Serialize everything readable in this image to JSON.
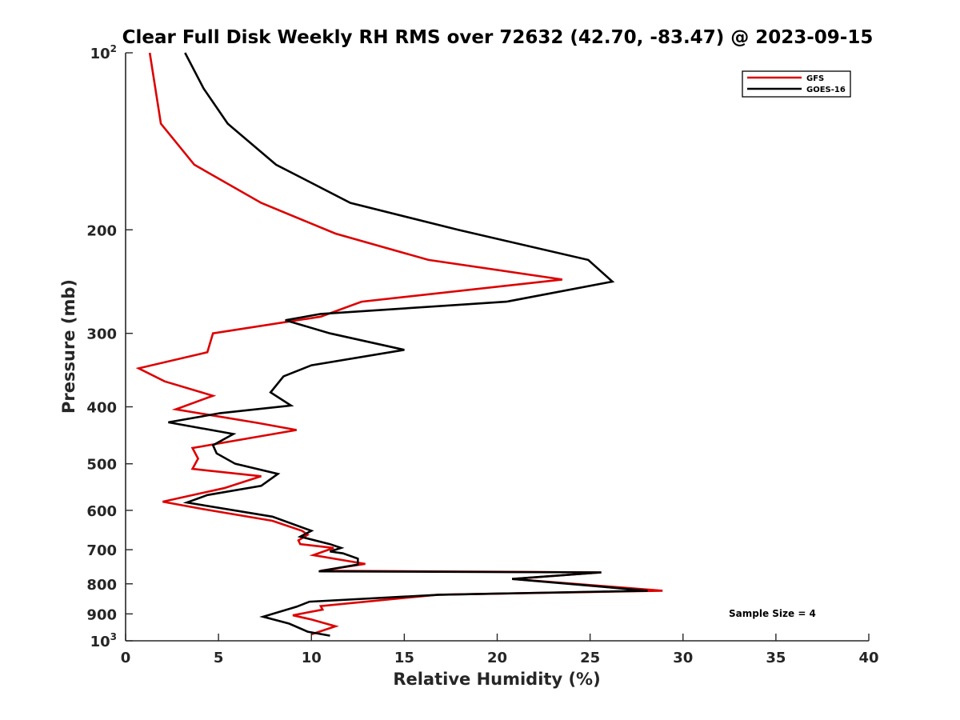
{
  "chart_data": {
    "type": "line",
    "title": "Clear Full Disk Weekly RH RMS over 72632 (42.70, -83.47) @ 2023-09-15",
    "xlabel": "Relative Humidity (%)",
    "ylabel": "Pressure (mb)",
    "xlim": [
      0,
      40
    ],
    "ylim": [
      100,
      1000
    ],
    "y_scale": "log",
    "y_reversed": true,
    "grid": false,
    "legend_position": "top-right",
    "x_ticks": [
      "0",
      "5",
      "10",
      "15",
      "20",
      "25",
      "30",
      "35",
      "40"
    ],
    "y_ticks": [
      {
        "value": 100,
        "base": "10",
        "exp": "2"
      },
      {
        "value": 200,
        "label": "200"
      },
      {
        "value": 300,
        "label": "300"
      },
      {
        "value": 400,
        "label": "400"
      },
      {
        "value": 500,
        "label": "500"
      },
      {
        "value": 600,
        "label": "600"
      },
      {
        "value": 700,
        "label": "700"
      },
      {
        "value": 800,
        "label": "800"
      },
      {
        "value": 900,
        "label": "900"
      },
      {
        "value": 1000,
        "base": "10",
        "exp": "3"
      }
    ],
    "annotation": "Sample Size = 4",
    "series": [
      {
        "name": "GFS",
        "color": "#dd0000",
        "points": [
          [
            1.3,
            100
          ],
          [
            1.6,
            115
          ],
          [
            1.9,
            132
          ],
          [
            3.7,
            155
          ],
          [
            7.3,
            180
          ],
          [
            11.3,
            203
          ],
          [
            16.3,
            225
          ],
          [
            23.5,
            243
          ],
          [
            12.7,
            265
          ],
          [
            10.5,
            281
          ],
          [
            4.7,
            300
          ],
          [
            4.4,
            323
          ],
          [
            0.7,
            344
          ],
          [
            2.1,
            362
          ],
          [
            4.7,
            383
          ],
          [
            2.7,
            404
          ],
          [
            7.1,
            426
          ],
          [
            9.2,
            438
          ],
          [
            3.6,
            470
          ],
          [
            3.9,
            490
          ],
          [
            3.6,
            510
          ],
          [
            7.3,
            525
          ],
          [
            5.3,
            550
          ],
          [
            2.0,
            580
          ],
          [
            4.3,
            598
          ],
          [
            7.9,
            625
          ],
          [
            9.5,
            650
          ],
          [
            9.8,
            660
          ],
          [
            9.3,
            675
          ],
          [
            9.4,
            685
          ],
          [
            11.2,
            695
          ],
          [
            10.1,
            715
          ],
          [
            12.0,
            732
          ],
          [
            12.9,
            740
          ],
          [
            10.5,
            760
          ],
          [
            25.6,
            765
          ],
          [
            20.8,
            785
          ],
          [
            28.9,
            822
          ],
          [
            16.8,
            835
          ],
          [
            10.5,
            873
          ],
          [
            10.6,
            885
          ],
          [
            9.0,
            905
          ],
          [
            10.0,
            920
          ],
          [
            11.3,
            945
          ],
          [
            10.0,
            975
          ]
        ]
      },
      {
        "name": "GOES-16",
        "color": "#000000",
        "points": [
          [
            3.2,
            100
          ],
          [
            4.2,
            115
          ],
          [
            5.5,
            132
          ],
          [
            8.1,
            155
          ],
          [
            12.1,
            180
          ],
          [
            17.9,
            200
          ],
          [
            24.9,
            225
          ],
          [
            26.2,
            245
          ],
          [
            20.5,
            265
          ],
          [
            10.5,
            278
          ],
          [
            8.6,
            285
          ],
          [
            11.0,
            300
          ],
          [
            15.0,
            320
          ],
          [
            10.0,
            340
          ],
          [
            8.5,
            355
          ],
          [
            7.8,
            378
          ],
          [
            8.9,
            398
          ],
          [
            5.1,
            410
          ],
          [
            2.3,
            425
          ],
          [
            5.8,
            445
          ],
          [
            4.7,
            465
          ],
          [
            4.9,
            480
          ],
          [
            5.9,
            500
          ],
          [
            8.2,
            520
          ],
          [
            7.3,
            545
          ],
          [
            4.4,
            565
          ],
          [
            3.3,
            582
          ],
          [
            7.9,
            615
          ],
          [
            10.0,
            650
          ],
          [
            9.4,
            665
          ],
          [
            11.0,
            685
          ],
          [
            11.6,
            695
          ],
          [
            11.0,
            705
          ],
          [
            11.7,
            710
          ],
          [
            12.5,
            725
          ],
          [
            12.5,
            742
          ],
          [
            10.4,
            762
          ],
          [
            25.6,
            765
          ],
          [
            20.8,
            785
          ],
          [
            28.1,
            822
          ],
          [
            16.9,
            835
          ],
          [
            9.9,
            858
          ],
          [
            9.2,
            875
          ],
          [
            7.4,
            910
          ],
          [
            8.8,
            935
          ],
          [
            9.8,
            965
          ],
          [
            11.0,
            980
          ]
        ]
      }
    ]
  }
}
